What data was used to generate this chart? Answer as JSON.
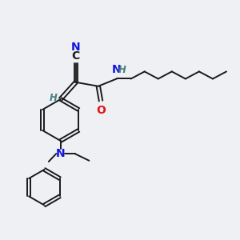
{
  "background_color": "#eef0f4",
  "bond_color": "#1a1a1a",
  "nitrogen_color": "#1414e0",
  "oxygen_color": "#e01414",
  "hydrogen_color": "#4a8080",
  "label_fontsize": 10,
  "small_fontsize": 8.5,
  "figsize": [
    3.0,
    3.0
  ],
  "dpi": 100,
  "xlim": [
    0,
    12
  ],
  "ylim": [
    0,
    12
  ]
}
